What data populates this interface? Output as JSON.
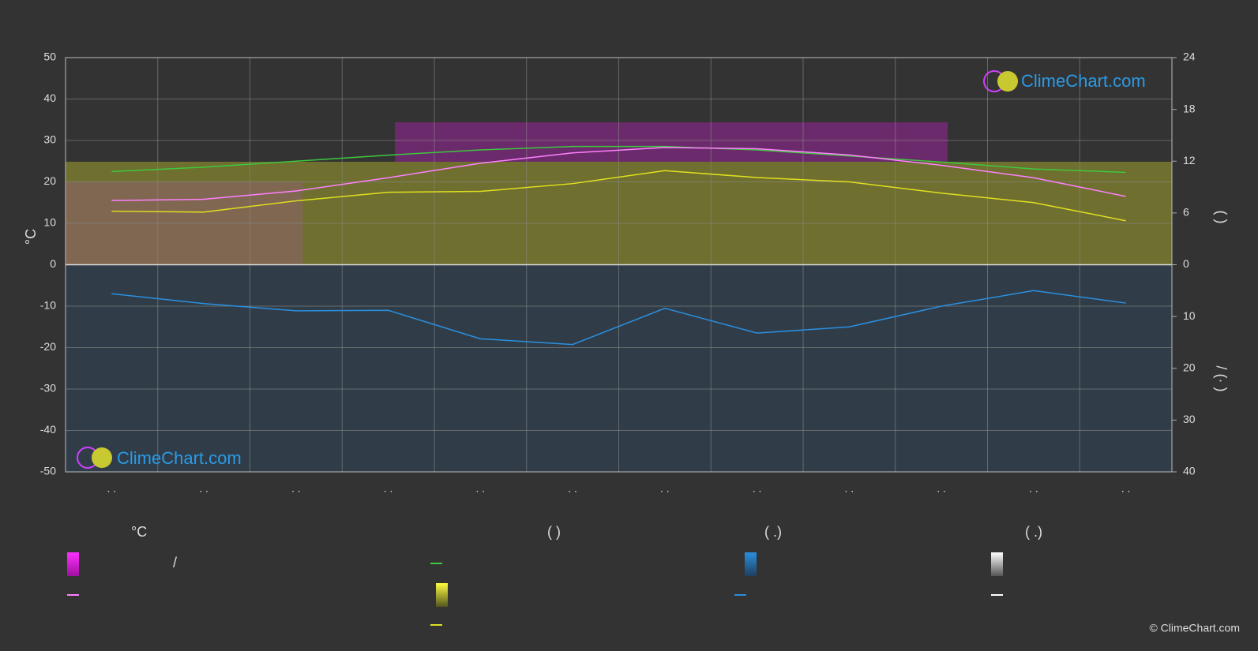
{
  "chart_data": {
    "type": "line",
    "y_label": "°C",
    "y2_label": "(          )",
    "y3_label": "/       (·   )",
    "categories": [
      ". .",
      ". .",
      ". .",
      ". .",
      ". .",
      ". .",
      ". .",
      ". .",
      ". .",
      ". .",
      ". .",
      ". ."
    ],
    "ylim": [
      -50,
      50
    ],
    "yticks": [
      -50,
      -40,
      -30,
      -20,
      -10,
      0,
      10,
      20,
      30,
      40,
      50
    ],
    "y2lim": [
      0,
      24
    ],
    "y2ticks": [
      0,
      6,
      12,
      18,
      24
    ],
    "y3lim": [
      0,
      40
    ],
    "y3ticks": [
      10,
      20,
      30,
      40
    ],
    "grid": true,
    "series": [
      {
        "color": "#3ec83e",
        "axis": "y2",
        "values": [
          10.8,
          11.3,
          12,
          12.7,
          13.3,
          13.7,
          13.7,
          13.3,
          12.6,
          11.9,
          11.1,
          10.7
        ]
      },
      {
        "color": "#e0e020",
        "axis": "y2",
        "values": [
          6.2,
          6.1,
          7.4,
          8.4,
          8.5,
          9.4,
          10.9,
          10.1,
          9.6,
          8.3,
          7.2,
          5.1
        ]
      },
      {
        "color": "#ff80ff",
        "values": [
          15.5,
          15.8,
          17.8,
          21,
          24.5,
          27,
          28.3,
          28,
          26.5,
          24,
          21,
          16.5
        ]
      },
      {
        "color": "#2a8fe0",
        "axis": "y3",
        "values": [
          5.6,
          7.5,
          8.9,
          8.8,
          14.3,
          15.4,
          8.4,
          13.2,
          12,
          8,
          5,
          7.4
        ]
      }
    ],
    "legend": {
      "headers": [
        "°C",
        "(          )",
        "(   .)",
        "(   .)"
      ],
      "separator": "/"
    },
    "logo": "ClimeChart.com",
    "copyright": "© ClimeChart.com"
  }
}
